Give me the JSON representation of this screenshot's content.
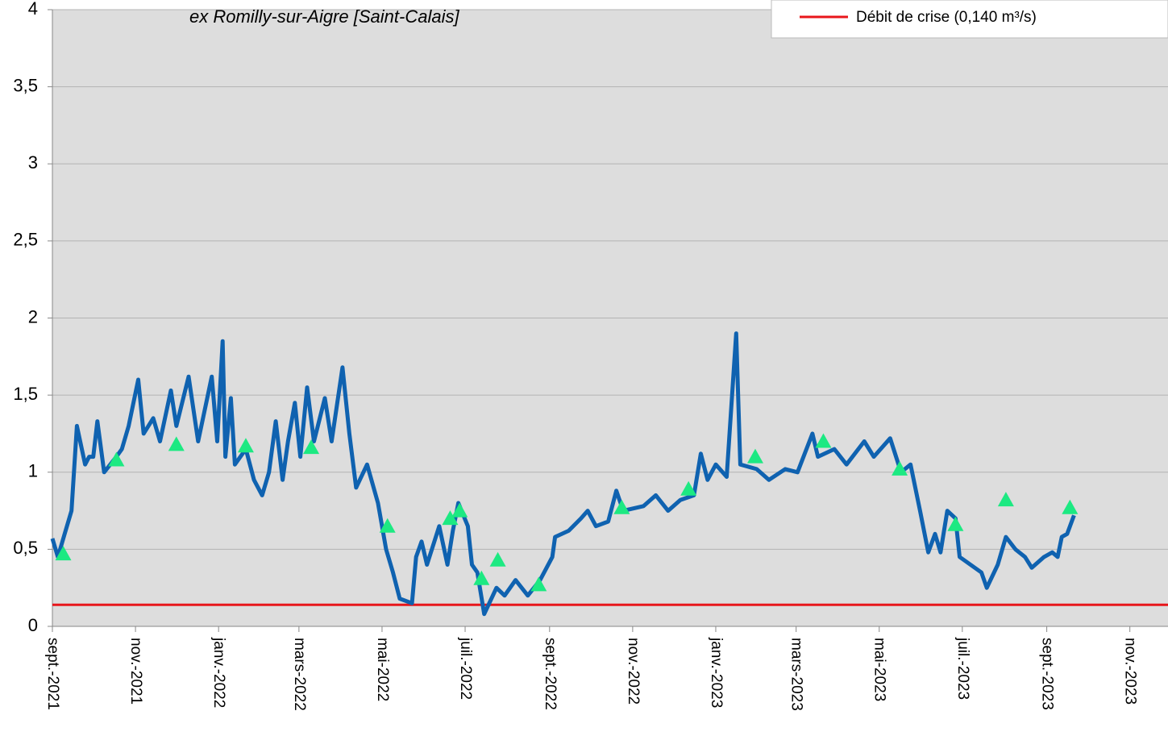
{
  "chart_data": {
    "type": "line",
    "title": "ex Romilly-sur-Aigre [Saint-Calais]",
    "xlim": [
      "2021-09-01",
      "2023-11-29"
    ],
    "xticks": [
      {
        "value": "2021-09-01",
        "label": "sept.-2021"
      },
      {
        "value": "2021-11-01",
        "label": "nov.-2021"
      },
      {
        "value": "2022-01-01",
        "label": "janv.-2022"
      },
      {
        "value": "2022-03-01",
        "label": "mars-2022"
      },
      {
        "value": "2022-05-01",
        "label": "mai-2022"
      },
      {
        "value": "2022-07-01",
        "label": "juil.-2022"
      },
      {
        "value": "2022-09-01",
        "label": "sept.-2022"
      },
      {
        "value": "2022-11-01",
        "label": "nov.-2022"
      },
      {
        "value": "2023-01-01",
        "label": "janv.-2023"
      },
      {
        "value": "2023-03-01",
        "label": "mars-2023"
      },
      {
        "value": "2023-05-01",
        "label": "mai-2023"
      },
      {
        "value": "2023-07-01",
        "label": "juil.-2023"
      },
      {
        "value": "2023-09-01",
        "label": "sept.-2023"
      },
      {
        "value": "2023-11-01",
        "label": "nov.-2023"
      }
    ],
    "ylim": [
      0,
      4
    ],
    "yticks": [
      0,
      {
        "value": 0.5,
        "label": "0,5"
      },
      1,
      {
        "value": 1.5,
        "label": "1,5"
      },
      2,
      {
        "value": 2.5,
        "label": "2,5"
      },
      3,
      {
        "value": 3.5,
        "label": "3,5"
      },
      4
    ],
    "grid": true,
    "legend": "top-right",
    "series": [
      {
        "style": "line",
        "color": "#0f62b0",
        "x": [
          "2021-09-01",
          "2021-09-05",
          "2021-09-10",
          "2021-09-15",
          "2021-09-19",
          "2021-09-25",
          "2021-09-28",
          "2021-10-01",
          "2021-10-04",
          "2021-10-09",
          "2021-10-18",
          "2021-10-22",
          "2021-10-27",
          "2021-11-03",
          "2021-11-07",
          "2021-11-14",
          "2021-11-19",
          "2021-11-27",
          "2021-12-01",
          "2021-12-10",
          "2021-12-17",
          "2021-12-27",
          "2021-12-31",
          "2022-01-04",
          "2022-01-06",
          "2022-01-10",
          "2022-01-13",
          "2022-01-21",
          "2022-01-27",
          "2022-02-02",
          "2022-02-07",
          "2022-02-12",
          "2022-02-17",
          "2022-02-21",
          "2022-02-26",
          "2022-03-02",
          "2022-03-07",
          "2022-03-12",
          "2022-03-20",
          "2022-03-25",
          "2022-04-02",
          "2022-04-07",
          "2022-04-12",
          "2022-04-20",
          "2022-04-28",
          "2022-05-04",
          "2022-05-09",
          "2022-05-14",
          "2022-05-23",
          "2022-05-26",
          "2022-05-30",
          "2022-06-03",
          "2022-06-12",
          "2022-06-18",
          "2022-06-22",
          "2022-06-26",
          "2022-07-03",
          "2022-07-06",
          "2022-07-10",
          "2022-07-15",
          "2022-07-24",
          "2022-07-30",
          "2022-08-07",
          "2022-08-16",
          "2022-08-25",
          "2022-09-03",
          "2022-09-05",
          "2022-09-15",
          "2022-09-24",
          "2022-09-29",
          "2022-10-05",
          "2022-10-14",
          "2022-10-20",
          "2022-10-25",
          "2022-11-09",
          "2022-11-18",
          "2022-11-27",
          "2022-12-06",
          "2022-12-16",
          "2022-12-21",
          "2022-12-26",
          "2023-01-01",
          "2023-01-09",
          "2023-01-16",
          "2023-01-19",
          "2023-01-31",
          "2023-02-09",
          "2023-02-21",
          "2023-03-02",
          "2023-03-13",
          "2023-03-17",
          "2023-03-29",
          "2023-04-07",
          "2023-04-20",
          "2023-04-27",
          "2023-05-09",
          "2023-05-17",
          "2023-05-24",
          "2023-05-31",
          "2023-06-06",
          "2023-06-11",
          "2023-06-15",
          "2023-06-20",
          "2023-06-26",
          "2023-06-29",
          "2023-07-07",
          "2023-07-15",
          "2023-07-19",
          "2023-07-27",
          "2023-08-02",
          "2023-08-09",
          "2023-08-16",
          "2023-08-21",
          "2023-08-30",
          "2023-09-05",
          "2023-09-09",
          "2023-09-12",
          "2023-09-16",
          "2023-09-21"
        ],
        "values": [
          0.57,
          0.45,
          0.6,
          0.75,
          1.3,
          1.05,
          1.1,
          1.1,
          1.33,
          1.0,
          1.1,
          1.15,
          1.3,
          1.6,
          1.25,
          1.35,
          1.2,
          1.53,
          1.3,
          1.62,
          1.2,
          1.62,
          1.2,
          1.85,
          1.1,
          1.48,
          1.05,
          1.15,
          0.95,
          0.85,
          1.0,
          1.33,
          0.95,
          1.2,
          1.45,
          1.1,
          1.55,
          1.2,
          1.48,
          1.2,
          1.68,
          1.25,
          0.9,
          1.05,
          0.8,
          0.5,
          0.35,
          0.18,
          0.15,
          0.45,
          0.55,
          0.4,
          0.65,
          0.4,
          0.62,
          0.8,
          0.65,
          0.4,
          0.35,
          0.08,
          0.25,
          0.2,
          0.3,
          0.2,
          0.3,
          0.45,
          0.58,
          0.62,
          0.7,
          0.75,
          0.65,
          0.68,
          0.88,
          0.75,
          0.78,
          0.85,
          0.75,
          0.82,
          0.85,
          1.12,
          0.95,
          1.05,
          0.97,
          1.9,
          1.05,
          1.02,
          0.95,
          1.02,
          1.0,
          1.25,
          1.1,
          1.15,
          1.05,
          1.2,
          1.1,
          1.22,
          1.0,
          1.05,
          0.75,
          0.48,
          0.6,
          0.48,
          0.75,
          0.7,
          0.45,
          0.4,
          0.35,
          0.25,
          0.4,
          0.58,
          0.5,
          0.45,
          0.38,
          0.45,
          0.48,
          0.45,
          0.58,
          0.6,
          0.72
        ]
      },
      {
        "style": "marker",
        "color": "#1de982",
        "x": [
          "2021-09-09",
          "2021-10-18",
          "2021-12-01",
          "2022-01-21",
          "2022-03-10",
          "2022-05-05",
          "2022-06-20",
          "2022-06-27",
          "2022-07-13",
          "2022-07-25",
          "2022-08-24",
          "2022-10-24",
          "2022-12-12",
          "2023-01-30",
          "2023-03-21",
          "2023-05-16",
          "2023-06-26",
          "2023-08-02",
          "2023-09-18"
        ],
        "values": [
          0.47,
          1.08,
          1.18,
          1.17,
          1.16,
          0.65,
          0.7,
          0.75,
          0.31,
          0.43,
          0.27,
          0.77,
          0.89,
          1.1,
          1.2,
          1.02,
          0.66,
          0.82,
          0.77
        ]
      }
    ],
    "threshold": {
      "name": "Débit de crise (0,140 m³/s)",
      "value": 0.14,
      "color": "#e8161b"
    }
  }
}
